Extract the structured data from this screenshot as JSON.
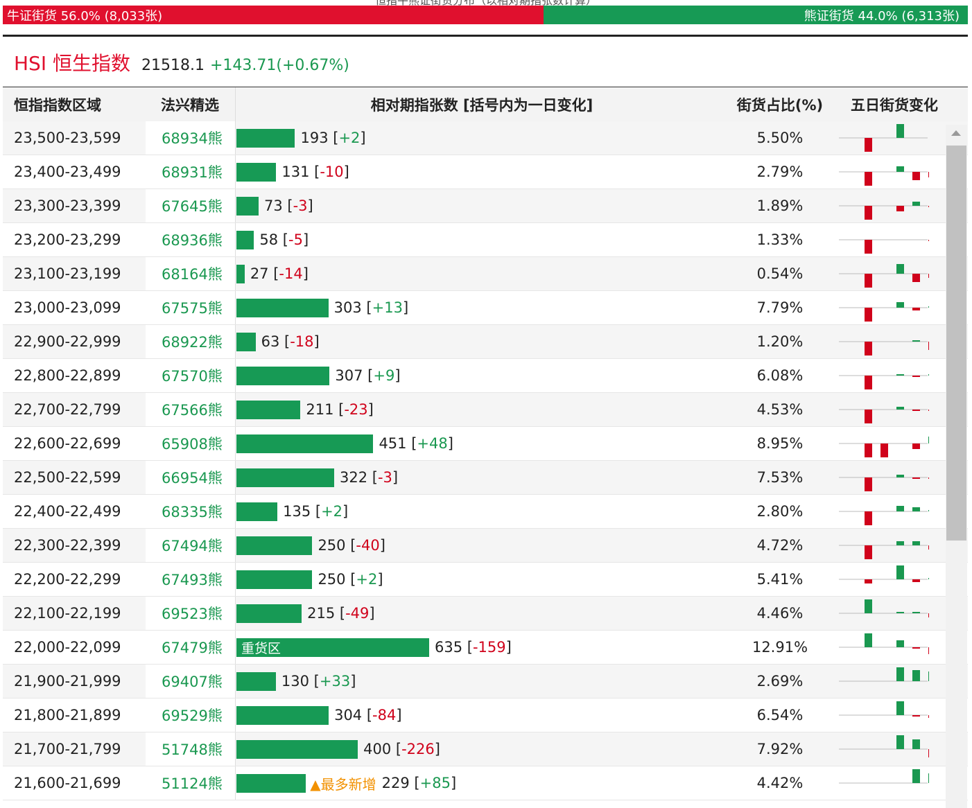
{
  "header": {
    "title": "恒指牛熊证街货分布（以相对期指张数计算）",
    "bull_label": "牛证街货 56.0% (8,033张)",
    "bear_label": "熊证街货 44.0% (6,313张)",
    "bull_pct": 56.0,
    "colors": {
      "bull": "#e0102e",
      "bear": "#179a55",
      "up": "#1a9850",
      "down": "#d0021b",
      "highlight": "#f29100"
    }
  },
  "index": {
    "name": "HSI 恒生指数",
    "price": "21518.1",
    "change": "+143.71(+0.67%)"
  },
  "table": {
    "headers": {
      "range": "恒指指数区域",
      "code": "法兴精选",
      "bar": "相对期指张数 [括号内为一日变化]",
      "pct": "街货占比(%)",
      "trend": "五日街货变化"
    },
    "max_value": 635,
    "rows": [
      {
        "range": "23,500-23,599",
        "code": "68934熊",
        "value": 193,
        "count": "193",
        "change": "+2",
        "pct": "5.50%",
        "trend": [
          -1,
          0,
          1,
          0,
          0
        ]
      },
      {
        "range": "23,400-23,499",
        "code": "68931熊",
        "value": 131,
        "count": "131",
        "change": "-10",
        "pct": "2.79%",
        "trend": [
          -1,
          0,
          0.4,
          -0.6,
          -0.4
        ]
      },
      {
        "range": "23,300-23,399",
        "code": "67645熊",
        "value": 73,
        "count": "73",
        "change": "-3",
        "pct": "1.89%",
        "trend": [
          -1,
          0,
          -0.4,
          0.3,
          -0.1
        ]
      },
      {
        "range": "23,200-23,299",
        "code": "68936熊",
        "value": 58,
        "count": "58",
        "change": "-5",
        "pct": "1.33%",
        "trend": [
          -1,
          0,
          0,
          0,
          -0.1
        ]
      },
      {
        "range": "23,100-23,199",
        "code": "68164熊",
        "value": 27,
        "count": "27",
        "change": "-14",
        "pct": "0.54%",
        "trend": [
          -1,
          0,
          0.7,
          -0.6,
          -0.3
        ]
      },
      {
        "range": "23,000-23,099",
        "code": "67575熊",
        "value": 303,
        "count": "303",
        "change": "+13",
        "pct": "7.79%",
        "trend": [
          -1,
          0,
          0.4,
          -0.2,
          0.1
        ]
      },
      {
        "range": "22,900-22,999",
        "code": "68922熊",
        "value": 63,
        "count": "63",
        "change": "-18",
        "pct": "1.20%",
        "trend": [
          -1,
          0,
          0,
          0.1,
          -0.6
        ]
      },
      {
        "range": "22,800-22,899",
        "code": "67570熊",
        "value": 307,
        "count": "307",
        "change": "+9",
        "pct": "6.08%",
        "trend": [
          -1,
          0,
          0.1,
          -0.1,
          0.1
        ]
      },
      {
        "range": "22,700-22,799",
        "code": "67566熊",
        "value": 211,
        "count": "211",
        "change": "-23",
        "pct": "4.53%",
        "trend": [
          -1,
          0,
          0.2,
          -0.1,
          -0.1
        ]
      },
      {
        "range": "22,600-22,699",
        "code": "65908熊",
        "value": 451,
        "count": "451",
        "change": "+48",
        "pct": "8.95%",
        "trend": [
          -1,
          -1,
          0,
          -0.4,
          0.5
        ]
      },
      {
        "range": "22,500-22,599",
        "code": "66954熊",
        "value": 322,
        "count": "322",
        "change": "-3",
        "pct": "7.53%",
        "trend": [
          -1,
          0,
          0.2,
          -0.1,
          -0.1
        ]
      },
      {
        "range": "22,400-22,499",
        "code": "68335熊",
        "value": 135,
        "count": "135",
        "change": "+2",
        "pct": "2.80%",
        "trend": [
          -1,
          0,
          0.4,
          0.3,
          0.1
        ]
      },
      {
        "range": "22,300-22,399",
        "code": "67494熊",
        "value": 250,
        "count": "250",
        "change": "-40",
        "pct": "4.72%",
        "trend": [
          -1,
          0,
          0.3,
          0.3,
          -0.3
        ]
      },
      {
        "range": "22,200-22,299",
        "code": "67493熊",
        "value": 250,
        "count": "250",
        "change": "+2",
        "pct": "5.41%",
        "trend": [
          -0.3,
          0,
          1,
          -0.2,
          0.1
        ]
      },
      {
        "range": "22,100-22,199",
        "code": "69523熊",
        "value": 215,
        "count": "215",
        "change": "-49",
        "pct": "4.46%",
        "trend": [
          1,
          0,
          0.1,
          0.1,
          -0.3
        ]
      },
      {
        "range": "22,000-22,099",
        "code": "67479熊",
        "value": 635,
        "count": "635",
        "change": "-159",
        "pct": "12.91%",
        "label": "重货区",
        "trend": [
          1,
          0,
          0.5,
          -0.1,
          -0.5
        ]
      },
      {
        "range": "21,900-21,999",
        "code": "69407熊",
        "value": 130,
        "count": "130",
        "change": "+33",
        "pct": "2.69%",
        "trend": [
          0,
          0,
          1,
          0.8,
          0.7
        ]
      },
      {
        "range": "21,800-21,899",
        "code": "69529熊",
        "value": 304,
        "count": "304",
        "change": "-84",
        "pct": "6.54%",
        "trend": [
          0,
          0,
          1,
          -0.1,
          -0.2
        ]
      },
      {
        "range": "21,700-21,799",
        "code": "51748熊",
        "value": 400,
        "count": "400",
        "change": "-226",
        "pct": "7.92%",
        "trend": [
          0,
          0,
          1,
          0.7,
          -0.6
        ]
      },
      {
        "range": "21,600-21,699",
        "code": "51124熊",
        "value": 229,
        "count": "229",
        "change": "+85",
        "pct": "4.42%",
        "tag": "▲最多新增",
        "trend": [
          0,
          0,
          0,
          1,
          0.7
        ]
      }
    ]
  }
}
